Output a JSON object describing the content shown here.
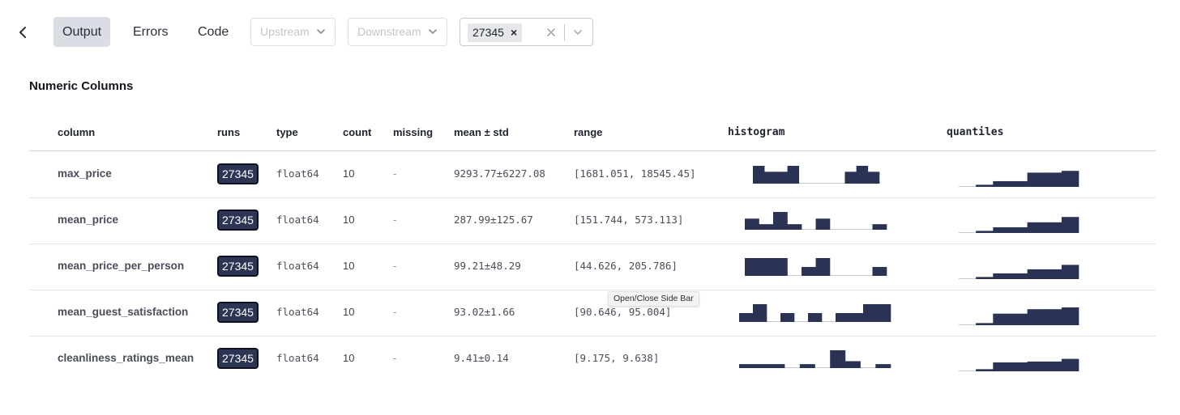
{
  "tabs": [
    {
      "label": "Output",
      "active": true
    },
    {
      "label": "Errors",
      "active": false
    },
    {
      "label": "Code",
      "active": false
    }
  ],
  "filters": {
    "upstream_placeholder": "Upstream",
    "downstream_placeholder": "Downstream",
    "selected_run": "27345"
  },
  "section_title": "Numeric Columns",
  "table": {
    "headers": {
      "column": "column",
      "runs": "runs",
      "type": "type",
      "count": "count",
      "missing": "missing",
      "mean_std": "mean ± std",
      "range": "range",
      "histogram": "histogram",
      "quantiles": "quantiles"
    },
    "rows": [
      {
        "column": "max_price",
        "run": "27345",
        "type": "float64",
        "count": "10",
        "missing": "-",
        "mean_std": "9293.77±6227.08",
        "range": "[1681.051, 18545.45]",
        "histogram": [
          3,
          2,
          2,
          3,
          0,
          0,
          0,
          0,
          2,
          3,
          2
        ],
        "quantiles": [
          0.0,
          0.12,
          0.32,
          0.32,
          0.8,
          0.8,
          0.9
        ]
      },
      {
        "column": "mean_price",
        "run": "27345",
        "type": "float64",
        "count": "10",
        "missing": "-",
        "mean_std": "287.99±125.67",
        "range": "[151.744, 573.113]",
        "histogram": [
          1,
          0.5,
          1.6,
          0.5,
          0,
          1,
          0,
          0,
          0,
          0.5
        ],
        "quantiles": [
          0.0,
          0.12,
          0.32,
          0.32,
          0.6,
          0.6,
          0.9
        ]
      },
      {
        "column": "mean_price_per_person",
        "run": "27345",
        "type": "float64",
        "count": "10",
        "missing": "-",
        "mean_std": "99.21±48.29",
        "range": "[44.626, 205.786]",
        "histogram": [
          2,
          2,
          2,
          0,
          1,
          2,
          0,
          0,
          0,
          1
        ],
        "quantiles": [
          0.0,
          0.12,
          0.32,
          0.32,
          0.55,
          0.55,
          0.8
        ]
      },
      {
        "column": "mean_guest_satisfaction",
        "run": "27345",
        "type": "float64",
        "count": "10",
        "missing": "-",
        "mean_std": "93.02±1.66",
        "range": "[90.646, 95.004]",
        "histogram": [
          1,
          2,
          0,
          1,
          0,
          1,
          0,
          1,
          1,
          2,
          2
        ],
        "quantiles": [
          0.0,
          0.12,
          0.65,
          0.65,
          0.9,
          0.9,
          1.0
        ]
      },
      {
        "column": "cleanliness_ratings_mean",
        "run": "27345",
        "type": "float64",
        "count": "10",
        "missing": "-",
        "mean_std": "9.41±0.14",
        "range": "[9.175, 9.638]",
        "histogram": [
          0.4,
          0.4,
          0.4,
          0,
          0.4,
          0,
          1.8,
          0.7,
          0,
          0.4
        ],
        "quantiles": [
          0.0,
          0.12,
          0.5,
          0.5,
          0.55,
          0.55,
          0.7
        ]
      }
    ]
  },
  "tooltip": "Open/Close Side Bar",
  "colors": {
    "accent": "#2d3555",
    "bar": "#2b3354"
  }
}
